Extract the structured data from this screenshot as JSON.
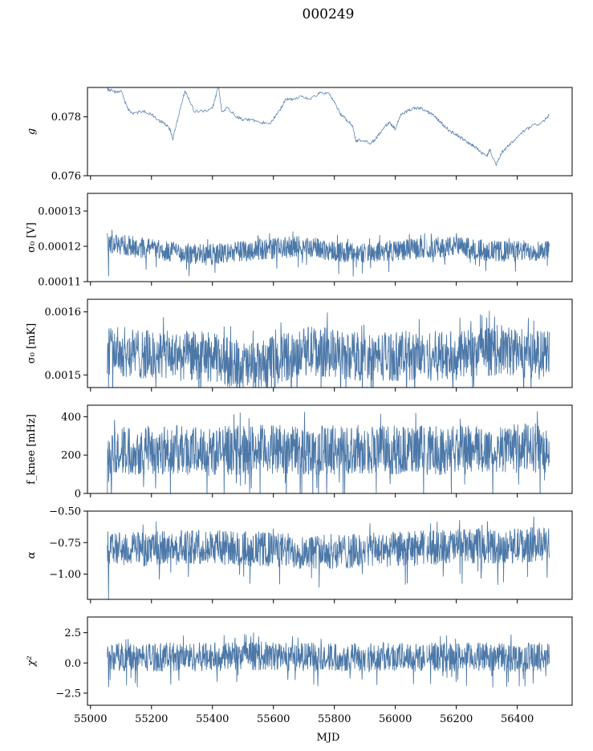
{
  "figure": {
    "title": "000249",
    "xlabel": "MJD",
    "line_color": "#4c78a8",
    "x_ticks": [
      "55000",
      "55200",
      "55400",
      "55600",
      "55800",
      "56000",
      "56200",
      "56400"
    ]
  },
  "chart_data": [
    {
      "type": "line",
      "ylabel": "g",
      "ylabel_style": "italic",
      "xlim": [
        54990,
        56580
      ],
      "ylim": [
        0.076,
        0.079
      ],
      "yticks": [
        "0.076",
        "0.078"
      ],
      "series": [
        {
          "x": [
            55055,
            55080,
            55100,
            55120,
            55140,
            55170,
            55200,
            55220,
            55240,
            55260,
            55270,
            55290,
            55310,
            55340,
            55370,
            55400,
            55420,
            55430,
            55450,
            55480,
            55500,
            55530,
            55560,
            55590,
            55620,
            55640,
            55660,
            55690,
            55720,
            55750,
            55780,
            55800,
            55820,
            55840,
            55860,
            55870,
            55890,
            55920,
            55940,
            55960,
            55980,
            56000,
            56020,
            56040,
            56060,
            56080,
            56100,
            56120,
            56140,
            56160,
            56180,
            56200,
            56220,
            56240,
            56260,
            56280,
            56300,
            56310,
            56330,
            56350,
            56370,
            56390,
            56420,
            56450,
            56480,
            56505
          ],
          "y": [
            0.07895,
            0.07885,
            0.0789,
            0.0783,
            0.0781,
            0.0782,
            0.0781,
            0.0779,
            0.0778,
            0.0776,
            0.07725,
            0.0781,
            0.0789,
            0.0782,
            0.0782,
            0.0783,
            0.07905,
            0.0782,
            0.0783,
            0.078,
            0.0779,
            0.0779,
            0.0778,
            0.0778,
            0.0782,
            0.0786,
            0.0786,
            0.0787,
            0.0786,
            0.0788,
            0.0788,
            0.0785,
            0.0781,
            0.0779,
            0.0777,
            0.0772,
            0.0772,
            0.0771,
            0.0773,
            0.0776,
            0.0778,
            0.0776,
            0.0781,
            0.0782,
            0.0783,
            0.0783,
            0.0782,
            0.0781,
            0.0779,
            0.0777,
            0.0775,
            0.0774,
            0.07725,
            0.0771,
            0.077,
            0.0768,
            0.07665,
            0.0769,
            0.07635,
            0.0768,
            0.077,
            0.0772,
            0.0775,
            0.0777,
            0.0778,
            0.07805
          ]
        }
      ]
    },
    {
      "type": "line",
      "ylabel": "σ₀ [V]",
      "xlim": [
        54990,
        56580
      ],
      "ylim": [
        0.00011,
        0.000135
      ],
      "yticks": [
        "0.00011",
        "0.00012",
        "0.00013"
      ],
      "series": [
        {
          "x_range": [
            55055,
            56505
          ],
          "center": [
            0.000121,
            0.000119,
            0.0001175,
            0.000119,
            0.00012,
            0.000118,
            0.000119,
            0.00012,
            0.0001185,
            0.000119
          ],
          "halfwidth": 3e-06,
          "outlier_low": 0.0001115
        }
      ]
    },
    {
      "type": "line",
      "ylabel": "σ₀ [mK]",
      "xlim": [
        54990,
        56580
      ],
      "ylim": [
        0.00148,
        0.00162
      ],
      "yticks": [
        "0.0015",
        "0.0016"
      ],
      "series": [
        {
          "x_range": [
            55055,
            56505
          ],
          "center": [
            0.00154,
            0.00153,
            0.00153,
            0.00151,
            0.00154,
            0.00153,
            0.00153,
            0.00153,
            0.00154,
            0.00153
          ],
          "halfwidth": 4e-05,
          "outlier_low": 0.00148
        }
      ]
    },
    {
      "type": "line",
      "ylabel": "f_knee [mHz]",
      "xlim": [
        54990,
        56580
      ],
      "ylim": [
        0,
        460
      ],
      "yticks": [
        "0",
        "200",
        "400"
      ],
      "series": [
        {
          "x_range": [
            55055,
            56505
          ],
          "center": [
            220,
            230,
            220,
            230,
            225,
            230,
            225,
            225,
            230,
            240
          ],
          "halfwidth": 130,
          "outlier_low": 60
        }
      ]
    },
    {
      "type": "line",
      "ylabel": "α",
      "ylabel_style": "italic",
      "xlim": [
        54990,
        56580
      ],
      "ylim": [
        -1.2,
        -0.5
      ],
      "yticks": [
        "−0.50",
        "−0.75",
        "−1.00"
      ],
      "series": [
        {
          "x_range": [
            55055,
            56505
          ],
          "center": [
            -0.8,
            -0.8,
            -0.78,
            -0.8,
            -0.82,
            -0.82,
            -0.8,
            -0.78,
            -0.78,
            -0.76
          ],
          "halfwidth": 0.14,
          "outlier_low": -1.2
        }
      ]
    },
    {
      "type": "line",
      "ylabel": "χ²",
      "ylabel_style": "italic",
      "xlim": [
        54990,
        56580
      ],
      "ylim": [
        -3.5,
        3.8
      ],
      "yticks": [
        "2.5",
        "0.0",
        "−2.5"
      ],
      "series": [
        {
          "x_range": [
            55055,
            56505
          ],
          "center": [
            0.5,
            0.5,
            0.5,
            0.6,
            0.5,
            0.5,
            0.5,
            0.5,
            0.5,
            0.5
          ],
          "halfwidth": 1.2,
          "outlier_low": -2.0
        }
      ]
    }
  ]
}
